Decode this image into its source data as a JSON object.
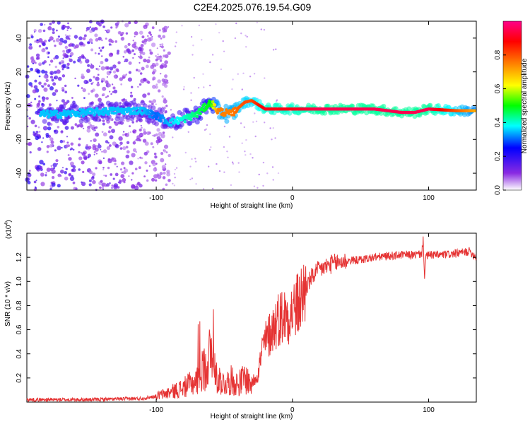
{
  "title": "C2E4.2025.076.19.54.G09",
  "chart_data": [
    {
      "type": "heatmap",
      "name": "spectrogram",
      "xlabel": "Height of straight line (km)",
      "ylabel": "Frequency (Hz)",
      "xlim": [
        -195,
        135
      ],
      "ylim": [
        -50,
        50
      ],
      "xticks": [
        "-100",
        "0",
        "100"
      ],
      "yticks": [
        "-40",
        "-20",
        "0",
        "20",
        "40"
      ],
      "grid": false,
      "colorbar": {
        "label": "Normalized spectral amplitude",
        "range": [
          0,
          1
        ],
        "ticks": [
          "0.0",
          "0.2",
          "0.4",
          "0.6",
          "0.8"
        ],
        "colors": [
          "#ffffff",
          "#8a2be2",
          "#0000ff",
          "#00ffff",
          "#00ff00",
          "#ffff00",
          "#ff7f00",
          "#ff0000",
          "#ff00ff"
        ]
      },
      "trace": {
        "x": [
          -170,
          -150,
          -130,
          -110,
          -100,
          -90,
          -80,
          -70,
          -60,
          -55,
          -45,
          -35,
          -30,
          -20,
          -10,
          0,
          20,
          60,
          80,
          90,
          100,
          120,
          135
        ],
        "y": [
          -5,
          -4,
          -3,
          -3,
          -6,
          -10,
          -8,
          -5,
          2,
          -3,
          -5,
          2,
          3,
          -2,
          -2,
          -2,
          -2,
          -2,
          -4,
          -4,
          -2,
          -3,
          -3
        ],
        "amplitude": [
          0.35,
          0.35,
          0.35,
          0.35,
          0.3,
          0.35,
          0.4,
          0.45,
          0.5,
          0.75,
          0.75,
          0.8,
          0.8,
          0.9,
          0.9,
          0.9,
          0.95,
          0.95,
          0.95,
          0.95,
          0.95,
          0.8,
          0.7
        ]
      }
    },
    {
      "type": "line",
      "name": "snr",
      "xlabel": "Height of straight line (km)",
      "ylabel": "SNR (10 * v/v)",
      "multiplier": "(x10",
      "multiplier_exp": "4",
      "multiplier_close": ")",
      "xlim": [
        -195,
        135
      ],
      "ylim": [
        0,
        1.4
      ],
      "xticks": [
        "-100",
        "0",
        "100"
      ],
      "yticks": [
        "0.2",
        "0.4",
        "0.6",
        "0.8",
        "1.0",
        "1.2"
      ],
      "color": "#e53333",
      "grid": false,
      "series": [
        {
          "x": [
            -195,
            -150,
            -110,
            -100,
            -90,
            -80,
            -75,
            -70,
            -65,
            -60,
            -55,
            -50,
            -45,
            -40,
            -35,
            -30,
            -25,
            -22,
            -20,
            -15,
            -10,
            -5,
            0,
            5,
            10,
            15,
            20,
            30,
            40,
            50,
            60,
            80,
            90,
            95,
            96,
            97,
            98,
            100,
            110,
            120,
            130,
            135
          ],
          "y": [
            0.02,
            0.02,
            0.03,
            0.05,
            0.08,
            0.12,
            0.15,
            0.18,
            0.28,
            0.4,
            0.2,
            0.15,
            0.18,
            0.15,
            0.2,
            0.15,
            0.25,
            0.45,
            0.5,
            0.6,
            0.7,
            0.72,
            0.75,
            0.82,
            0.95,
            1.05,
            1.1,
            1.15,
            1.17,
            1.18,
            1.2,
            1.22,
            1.22,
            1.23,
            1.35,
            1.05,
            1.2,
            1.22,
            1.22,
            1.23,
            1.25,
            1.2
          ]
        }
      ]
    }
  ]
}
